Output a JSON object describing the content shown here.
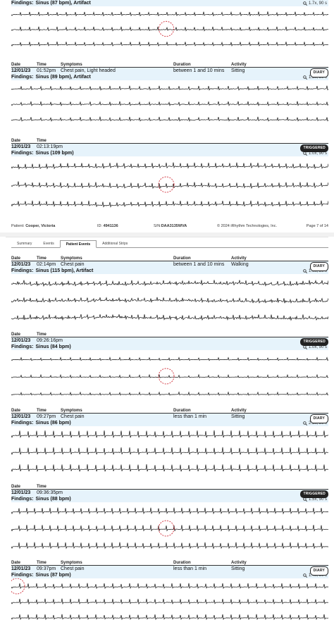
{
  "page1": {
    "top_event": {
      "findings_label": "Findings:",
      "findings": "Sinus (87 bpm), Artifact",
      "meta": "1.7x, 90 s"
    },
    "events": [
      {
        "labels": {
          "date": "Date",
          "time": "Time",
          "symptoms": "Symptoms",
          "duration": "Duration",
          "activity": "Activity"
        },
        "date": "12/01/23",
        "time": "01:52pm",
        "symptoms": "Chest pain, Light headed",
        "duration": "between 1 and 10 mins",
        "activity": "Sitting",
        "badge": "DIARY",
        "findings_label": "Findings:",
        "findings": "Sinus (89 bpm), Artifact",
        "meta": "1.8x, 90 s"
      },
      {
        "labels": {
          "date": "Date",
          "time": "Time"
        },
        "date": "12/01/23",
        "time": "02:13:19pm",
        "badge": "TRIGGERED",
        "findings_label": "Findings:",
        "findings": "Sinus (109 bpm)",
        "meta": "1.0x, 90 s"
      }
    ],
    "footer": {
      "patient_label": "Patient:",
      "patient": "Cooper, Victoria",
      "id_label": "ID:",
      "id": "4941136",
      "sn_label": "S/N:",
      "sn": "DAA3135WVA",
      "copyright": "© 2024 iRhythm Technologies, Inc.",
      "page": "Page 7 of 14"
    }
  },
  "page2": {
    "tabs": [
      "Summary",
      "Events",
      "Patient Events",
      "Additional Strips"
    ],
    "active_tab": "Patient Events",
    "events": [
      {
        "labels": {
          "date": "Date",
          "time": "Time",
          "symptoms": "Symptoms",
          "duration": "Duration",
          "activity": "Activity"
        },
        "date": "12/01/23",
        "time": "02:14pm",
        "symptoms": "Chest pain",
        "duration": "between 1 and 10 mins",
        "activity": "Walking",
        "badge": "DIARY",
        "findings_label": "Findings:",
        "findings": "Sinus (115 bpm), Artifact",
        "meta": "1.0x, 90 s"
      },
      {
        "labels": {
          "date": "Date",
          "time": "Time"
        },
        "date": "12/01/23",
        "time": "09:26:16pm",
        "badge": "TRIGGERED",
        "findings_label": "Findings:",
        "findings": "Sinus (84 bpm)",
        "meta": "1.0x, 90 s"
      },
      {
        "labels": {
          "date": "Date",
          "time": "Time",
          "symptoms": "Symptoms",
          "duration": "Duration",
          "activity": "Activity"
        },
        "date": "12/01/23",
        "time": "09:27pm",
        "symptoms": "Chest pain",
        "duration": "less than 1 min",
        "activity": "Sitting",
        "badge": "DIARY",
        "findings_label": "Findings:",
        "findings": "Sinus (86 bpm)",
        "meta": "2.3x, 90 s"
      },
      {
        "labels": {
          "date": "Date",
          "time": "Time"
        },
        "date": "12/01/23",
        "time": "09:36:35pm",
        "badge": "TRIGGERED",
        "findings_label": "Findings:",
        "findings": "Sinus (88 bpm)",
        "meta": "1.5x, 90 s"
      },
      {
        "labels": {
          "date": "Date",
          "time": "Time",
          "symptoms": "Symptoms",
          "duration": "Duration",
          "activity": "Activity"
        },
        "date": "12/01/23",
        "time": "09:37pm",
        "symptoms": "Chest pain",
        "duration": "less than 1 min",
        "activity": "Sitting",
        "badge": "DIARY",
        "findings_label": "Findings:",
        "findings": "Sinus (87 bpm)",
        "meta": "1.4x, 90 s"
      }
    ]
  },
  "icons": {
    "zoom": "magnifier-icon"
  },
  "colors": {
    "highlight_band": "#e6f3fb",
    "marker": "#d0303a",
    "trace": "#111111",
    "badge": "#222222"
  }
}
